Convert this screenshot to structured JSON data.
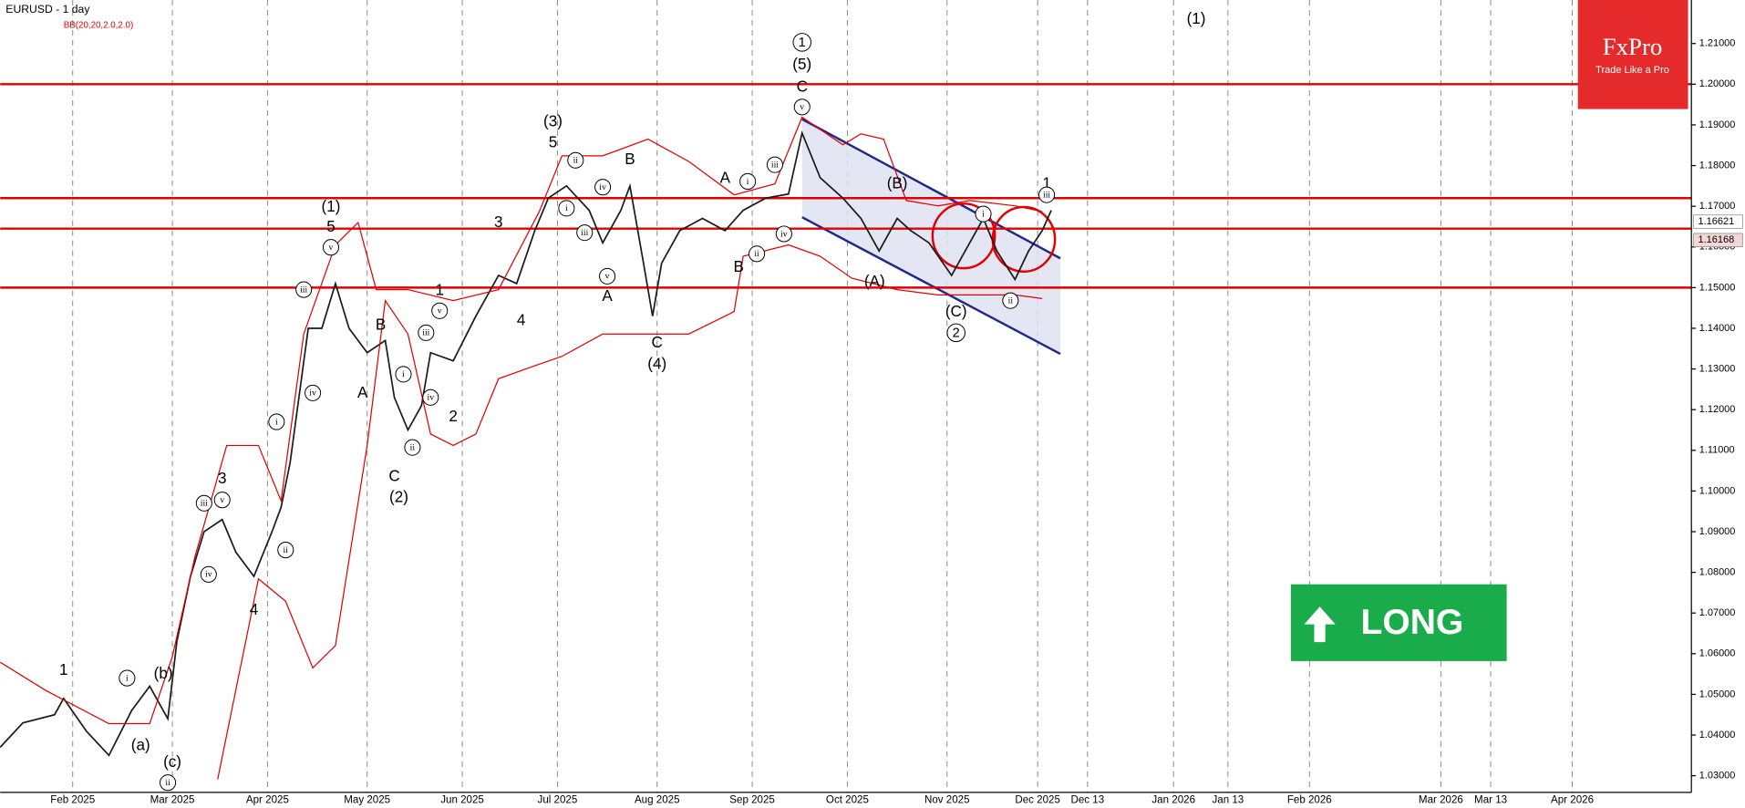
{
  "chart_data": {
    "type": "line",
    "title": "EURUSD - 1 day",
    "subtitle": "BB(20,20,2.0,2.0)",
    "badge": "LONG",
    "logo": {
      "name": "FxPro",
      "tagline": "Trade Like a Pro"
    },
    "xlim": [
      0,
      373.3
    ],
    "ylim": [
      1.0259,
      1.2207
    ],
    "grid": true,
    "xticks": [
      {
        "value": 16,
        "label": "Feb 2025"
      },
      {
        "value": 38,
        "label": "Mar 2025"
      },
      {
        "value": 59,
        "label": "Apr 2025"
      },
      {
        "value": 81,
        "label": "May 2025"
      },
      {
        "value": 102,
        "label": "Jun 2025"
      },
      {
        "value": 123,
        "label": "Jul 2025"
      },
      {
        "value": 145,
        "label": "Aug 2025"
      },
      {
        "value": 166,
        "label": "Sep 2025"
      },
      {
        "value": 187,
        "label": "Oct 2025"
      },
      {
        "value": 209,
        "label": "Nov 2025"
      },
      {
        "value": 229,
        "label": "Dec 2025"
      },
      {
        "value": 240,
        "label": "Dec 13"
      },
      {
        "value": 259,
        "label": "Jan 2026"
      },
      {
        "value": 271,
        "label": "Jan 13"
      },
      {
        "value": 289,
        "label": "Feb 2026"
      },
      {
        "value": 318,
        "label": "Mar 2026"
      },
      {
        "value": 329,
        "label": "Mar 13"
      },
      {
        "value": 347,
        "label": "Apr 2026"
      }
    ],
    "yticks": [
      {
        "value": 1.21,
        "label": "1.21000"
      },
      {
        "value": 1.2,
        "label": "1.20000"
      },
      {
        "value": 1.19,
        "label": "1.19000"
      },
      {
        "value": 1.18,
        "label": "1.18000"
      },
      {
        "value": 1.17,
        "label": "1.17000"
      },
      {
        "value": 1.16,
        "label": "1.16000"
      },
      {
        "value": 1.15,
        "label": "1.15000"
      },
      {
        "value": 1.14,
        "label": "1.14000"
      },
      {
        "value": 1.13,
        "label": "1.13000"
      },
      {
        "value": 1.12,
        "label": "1.12000"
      },
      {
        "value": 1.11,
        "label": "1.11000"
      },
      {
        "value": 1.1,
        "label": "1.10000"
      },
      {
        "value": 1.09,
        "label": "1.09000"
      },
      {
        "value": 1.08,
        "label": "1.08000"
      },
      {
        "value": 1.07,
        "label": "1.07000"
      },
      {
        "value": 1.06,
        "label": "1.06000"
      },
      {
        "value": 1.05,
        "label": "1.05000"
      },
      {
        "value": 1.04,
        "label": "1.04000"
      },
      {
        "value": 1.03,
        "label": "1.03000"
      }
    ],
    "series": [
      {
        "color": "#1a1a1a",
        "x": [
          0,
          5,
          12,
          14,
          19,
          24,
          29,
          33,
          37,
          39,
          42,
          45,
          49,
          52,
          56,
          60,
          62,
          64,
          68,
          71,
          74,
          77,
          81,
          85,
          87,
          90,
          93,
          95,
          100,
          105,
          110,
          114,
          118,
          121,
          125,
          130,
          133,
          137,
          139,
          142,
          144,
          146,
          150,
          155,
          160,
          164,
          169,
          174,
          177,
          181,
          186,
          190,
          194,
          198,
          201,
          205,
          210,
          213,
          217,
          220,
          224,
          227,
          230,
          232
        ],
        "values": [
          1.037,
          1.043,
          1.045,
          1.049,
          1.041,
          1.035,
          1.046,
          1.052,
          1.044,
          1.063,
          1.079,
          1.09,
          1.093,
          1.085,
          1.079,
          1.09,
          1.096,
          1.107,
          1.14,
          1.14,
          1.151,
          1.14,
          1.134,
          1.137,
          1.123,
          1.115,
          1.121,
          1.134,
          1.132,
          1.143,
          1.153,
          1.151,
          1.164,
          1.172,
          1.175,
          1.169,
          1.161,
          1.169,
          1.175,
          1.156,
          1.143,
          1.156,
          1.164,
          1.167,
          1.164,
          1.169,
          1.172,
          1.173,
          1.188,
          1.177,
          1.172,
          1.167,
          1.159,
          1.167,
          1.164,
          1.161,
          1.153,
          1.159,
          1.167,
          1.159,
          1.152,
          1.159,
          1.164,
          1.169
        ]
      },
      {
        "color": "#e00000",
        "x": [
          0,
          10,
          24,
          33,
          38,
          43,
          50,
          57,
          62,
          67,
          74,
          79,
          83,
          90,
          100,
          110,
          119,
          124,
          133,
          143,
          152,
          162,
          171,
          177,
          186,
          190,
          195,
          200,
          207,
          214,
          224,
          230
        ],
        "values": [
          1.0579,
          1.051,
          1.0428,
          1.0428,
          1.0593,
          1.0839,
          1.1112,
          1.1112,
          1.0976,
          1.1386,
          1.1605,
          1.166,
          1.1495,
          1.1495,
          1.1468,
          1.1495,
          1.1687,
          1.1824,
          1.1824,
          1.1865,
          1.181,
          1.1728,
          1.1755,
          1.1919,
          1.1851,
          1.1878,
          1.1865,
          1.1714,
          1.1701,
          1.1714,
          1.1701,
          1.1687
        ]
      },
      {
        "color": "#e00000",
        "x": [
          48,
          57,
          63,
          69,
          74,
          81,
          85,
          90,
          95,
          100,
          105,
          110,
          117,
          124,
          133,
          143,
          152,
          162,
          164,
          174,
          181,
          188,
          198,
          207,
          214,
          224,
          230
        ],
        "values": [
          1.0291,
          1.0784,
          1.0729,
          1.0565,
          1.062,
          1.1112,
          1.1468,
          1.1386,
          1.114,
          1.1112,
          1.114,
          1.1276,
          1.1304,
          1.1331,
          1.1386,
          1.1386,
          1.1386,
          1.1441,
          1.1577,
          1.1605,
          1.1577,
          1.1523,
          1.1495,
          1.1482,
          1.1482,
          1.1482,
          1.1473
        ]
      }
    ],
    "levels": [
      1.2,
      1.172,
      1.1645,
      1.15
    ],
    "level_color": "#e00000",
    "channel": {
      "color": "#1e2a8a",
      "upper": [
        [
          177,
          1.1914
        ],
        [
          234,
          1.1572
        ]
      ],
      "lower": [
        [
          177,
          1.1673
        ],
        [
          234,
          1.1337
        ]
      ]
    },
    "price_labels": [
      1.16621,
      1.16168
    ],
    "annotations": [
      {
        "text": "1",
        "x": 14,
        "y": 1.056
      },
      {
        "text": "(b)",
        "x": 36,
        "y": 1.0551
      },
      {
        "text": "(a)",
        "x": 31,
        "y": 1.0374
      },
      {
        "text": "(c)",
        "x": 38,
        "y": 1.0333
      },
      {
        "text": "3",
        "x": 49,
        "y": 1.103
      },
      {
        "text": "4",
        "x": 56,
        "y": 1.0707
      },
      {
        "text": "(1)",
        "x": 73,
        "y": 1.1698
      },
      {
        "text": "5",
        "x": 73,
        "y": 1.1649
      },
      {
        "text": "A",
        "x": 80,
        "y": 1.1241
      },
      {
        "text": "B",
        "x": 84,
        "y": 1.1408
      },
      {
        "text": "C",
        "x": 87,
        "y": 1.1036
      },
      {
        "text": "(2)",
        "x": 88,
        "y": 1.0984
      },
      {
        "text": "1",
        "x": 97,
        "y": 1.1493
      },
      {
        "text": "2",
        "x": 100,
        "y": 1.1183
      },
      {
        "text": "3",
        "x": 110,
        "y": 1.166
      },
      {
        "text": "4",
        "x": 115,
        "y": 1.1419
      },
      {
        "text": "(3)",
        "x": 122,
        "y": 1.1908
      },
      {
        "text": "5",
        "x": 122,
        "y": 1.1856
      },
      {
        "text": "A",
        "x": 134,
        "y": 1.1479
      },
      {
        "text": "B",
        "x": 139,
        "y": 1.1815
      },
      {
        "text": "C",
        "x": 145,
        "y": 1.1364
      },
      {
        "text": "(4)",
        "x": 145,
        "y": 1.1312
      },
      {
        "text": "A",
        "x": 160,
        "y": 1.1769
      },
      {
        "text": "B",
        "x": 163,
        "y": 1.155
      },
      {
        "text": "(5)",
        "x": 177,
        "y": 1.2048
      },
      {
        "text": "C",
        "x": 177,
        "y": 1.1993
      },
      {
        "text": "(B)",
        "x": 198,
        "y": 1.1755
      },
      {
        "text": "(A)",
        "x": 193,
        "y": 1.1514
      },
      {
        "text": "(C)",
        "x": 211,
        "y": 1.1441
      },
      {
        "text": "(1)",
        "x": 264,
        "y": 1.216
      },
      {
        "text": "1",
        "x": 231,
        "y": 1.1755
      },
      {
        "text": "1",
        "x": 177,
        "y": 1.2103,
        "circled": true
      },
      {
        "text": "2",
        "x": 211,
        "y": 1.1389,
        "circled": true
      },
      {
        "text": "iii",
        "x": 67,
        "y": 1.1495,
        "circled": true
      },
      {
        "text": "v",
        "x": 73,
        "y": 1.1599,
        "circled": true
      },
      {
        "text": "iv",
        "x": 69,
        "y": 1.1241,
        "circled": true
      },
      {
        "text": "i",
        "x": 61,
        "y": 1.117,
        "circled": true
      },
      {
        "text": "ii",
        "x": 63,
        "y": 1.0855,
        "circled": true
      },
      {
        "text": "iii",
        "x": 45,
        "y": 1.097,
        "circled": true
      },
      {
        "text": "v",
        "x": 49,
        "y": 1.0978,
        "circled": true
      },
      {
        "text": "iv",
        "x": 46,
        "y": 1.0795,
        "circled": true
      },
      {
        "text": "i",
        "x": 28,
        "y": 1.054,
        "circled": true
      },
      {
        "text": "ii",
        "x": 37,
        "y": 1.0283,
        "circled": true
      },
      {
        "text": "iii",
        "x": 94,
        "y": 1.1389,
        "circled": true
      },
      {
        "text": "v",
        "x": 97,
        "y": 1.1443,
        "circled": true
      },
      {
        "text": "i",
        "x": 89,
        "y": 1.1287,
        "circled": true
      },
      {
        "text": "iv",
        "x": 95,
        "y": 1.123,
        "circled": true
      },
      {
        "text": "ii",
        "x": 91,
        "y": 1.1107,
        "circled": true
      },
      {
        "text": "ii",
        "x": 127,
        "y": 1.1813,
        "circled": true
      },
      {
        "text": "i",
        "x": 125,
        "y": 1.1695,
        "circled": true
      },
      {
        "text": "iv",
        "x": 133,
        "y": 1.1747,
        "circled": true
      },
      {
        "text": "iii",
        "x": 129,
        "y": 1.1635,
        "circled": true
      },
      {
        "text": "v",
        "x": 134,
        "y": 1.1528,
        "circled": true
      },
      {
        "text": "i",
        "x": 165,
        "y": 1.1761,
        "circled": true
      },
      {
        "text": "iii",
        "x": 171,
        "y": 1.1802,
        "circled": true
      },
      {
        "text": "iv",
        "x": 173,
        "y": 1.1632,
        "circled": true
      },
      {
        "text": "ii",
        "x": 167,
        "y": 1.1583,
        "circled": true
      },
      {
        "text": "v",
        "x": 177,
        "y": 1.1944,
        "circled": true
      },
      {
        "text": "i",
        "x": 217,
        "y": 1.1681,
        "circled": true
      },
      {
        "text": "ii",
        "x": 223,
        "y": 1.1468,
        "circled": true
      },
      {
        "text": "iii",
        "x": 231,
        "y": 1.1728,
        "circled": true
      }
    ]
  }
}
